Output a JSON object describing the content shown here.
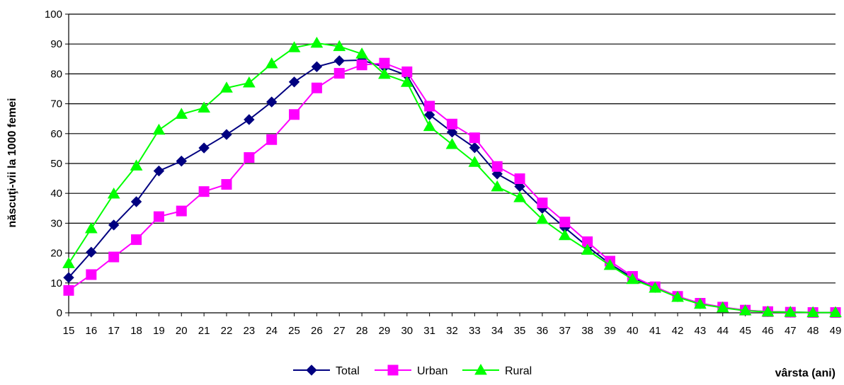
{
  "chart_data": {
    "type": "line",
    "title": "",
    "xlabel": "vârsta (ani)",
    "ylabel": "născuţi-vii la 1000 femei",
    "ylim": [
      0,
      100
    ],
    "yticks": [
      0,
      10,
      20,
      30,
      40,
      50,
      60,
      70,
      80,
      90,
      100
    ],
    "grid": "horizontal",
    "legend_position": "bottom",
    "categories": [
      "15",
      "16",
      "17",
      "18",
      "19",
      "20",
      "21",
      "22",
      "23",
      "24",
      "25",
      "26",
      "27",
      "28",
      "29",
      "30",
      "31",
      "32",
      "33",
      "34",
      "35",
      "36",
      "37",
      "38",
      "39",
      "40",
      "41",
      "42",
      "43",
      "44",
      "45",
      "46",
      "47",
      "48",
      "49"
    ],
    "series": [
      {
        "name": "Total",
        "color": "#000080",
        "marker": "diamond",
        "values": [
          11.8,
          20.3,
          29.4,
          37.2,
          47.5,
          50.8,
          55.2,
          59.7,
          64.7,
          70.6,
          77.3,
          82.4,
          84.4,
          84.6,
          82.3,
          79.5,
          66.3,
          60.5,
          55.3,
          46.5,
          42.3,
          35.0,
          28.5,
          22.2,
          16.4,
          11.7,
          8.5,
          5.4,
          3.1,
          1.8,
          0.8,
          0.4,
          0.2,
          0.1,
          0.1
        ]
      },
      {
        "name": "Urban",
        "color": "#FF00FF",
        "marker": "square",
        "values": [
          7.5,
          12.8,
          18.7,
          24.5,
          32.2,
          34.1,
          40.6,
          43.0,
          52.0,
          58.0,
          66.4,
          75.3,
          80.2,
          83.0,
          83.6,
          80.7,
          69.2,
          63.2,
          58.6,
          49.0,
          44.9,
          36.8,
          30.4,
          23.8,
          17.3,
          12.2,
          8.7,
          5.5,
          3.2,
          1.9,
          0.9,
          0.4,
          0.2,
          0.1,
          0.1
        ]
      },
      {
        "name": "Rural",
        "color": "#00FF00",
        "marker": "triangle",
        "values": [
          16.5,
          28.2,
          39.8,
          49.2,
          61.2,
          66.5,
          68.6,
          75.3,
          77.0,
          83.4,
          88.8,
          90.3,
          89.2,
          86.7,
          79.9,
          77.2,
          62.4,
          56.4,
          50.4,
          42.2,
          38.6,
          31.3,
          25.9,
          21.0,
          15.9,
          11.2,
          8.3,
          5.2,
          2.9,
          1.7,
          0.7,
          0.3,
          0.2,
          0.1,
          0.1
        ]
      }
    ]
  }
}
